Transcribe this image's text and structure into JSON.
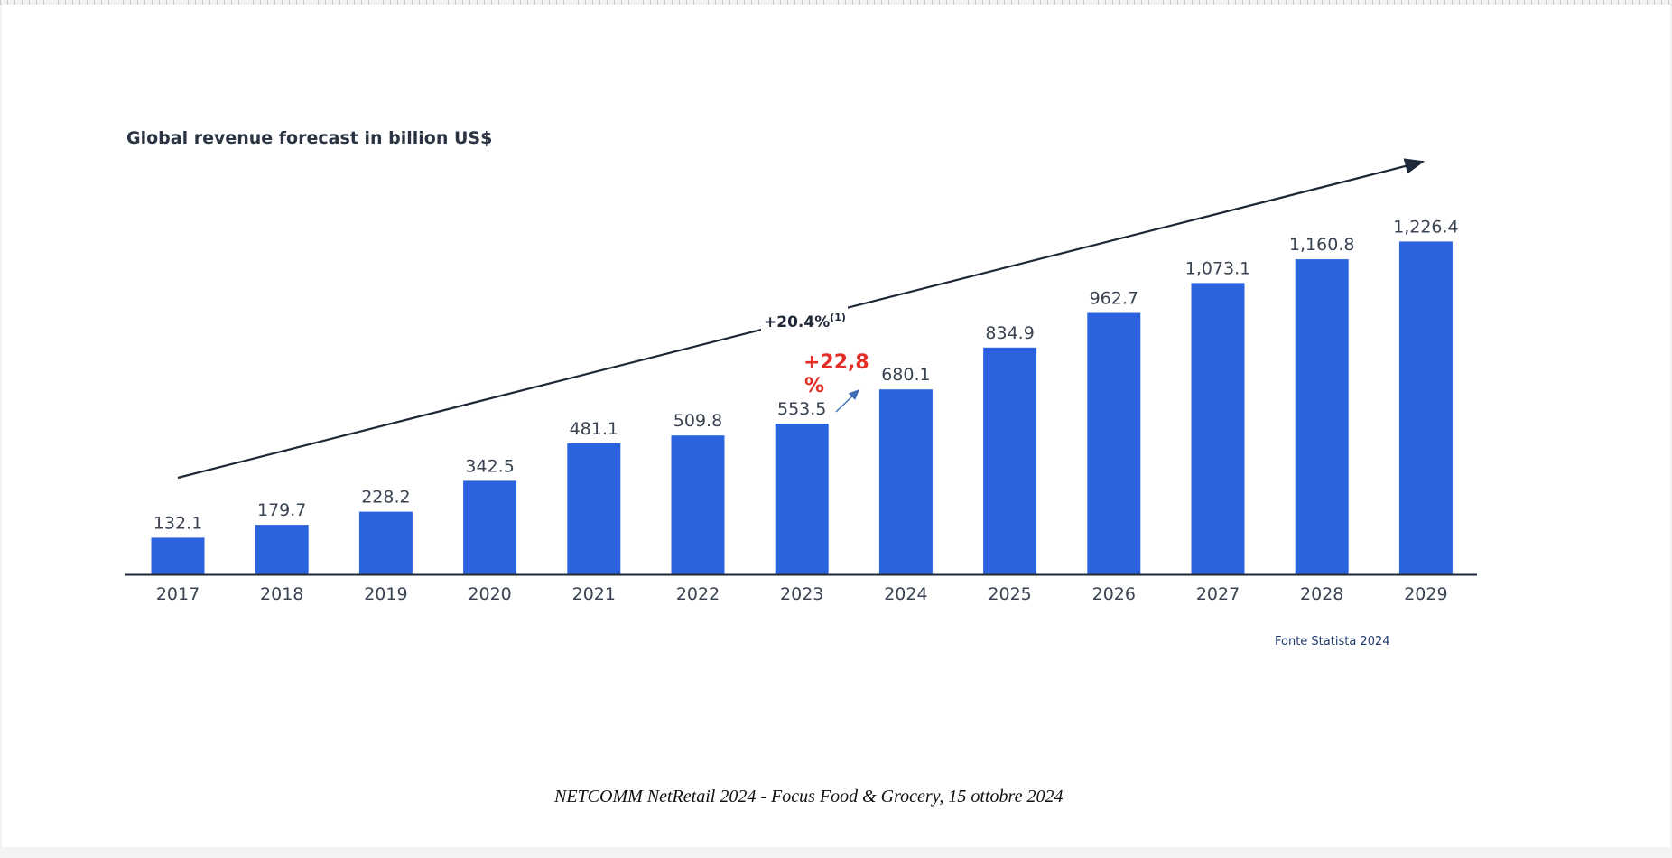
{
  "chart_data": {
    "type": "bar",
    "title": "Global revenue forecast in billion US$",
    "categories": [
      "2017",
      "2018",
      "2019",
      "2020",
      "2021",
      "2022",
      "2023",
      "2024",
      "2025",
      "2026",
      "2027",
      "2028",
      "2029"
    ],
    "values": [
      132.1,
      179.7,
      228.2,
      342.5,
      481.1,
      509.8,
      553.5,
      680.1,
      834.9,
      962.7,
      1073.1,
      1160.8,
      1226.4
    ],
    "value_labels": [
      "132.1",
      "179.7",
      "228.2",
      "342.5",
      "481.1",
      "509.8",
      "553.5",
      "680.1",
      "834.9",
      "962.7",
      "1,073.1",
      "1,160.8",
      "1,226.4"
    ],
    "xlabel": "",
    "ylabel": "",
    "ylim": [
      0,
      1250
    ],
    "grid": false,
    "legend": "none",
    "bar_color": "#2b63de",
    "annotations": {
      "cagr_text": "+20.4%",
      "cagr_note": "(1)",
      "yoy_text_line1": "+22,8",
      "yoy_text_line2": "%"
    }
  },
  "source_note": "Fonte Statista 2024",
  "footer": "NETCOMM NetRetail 2024 - Focus Food & Grocery, 15 ottobre  2024",
  "colors": {
    "bar": "#2b63de",
    "axis": "#1f2838",
    "highlight": "#e52d27",
    "small_arrow": "#3f6fb8"
  }
}
